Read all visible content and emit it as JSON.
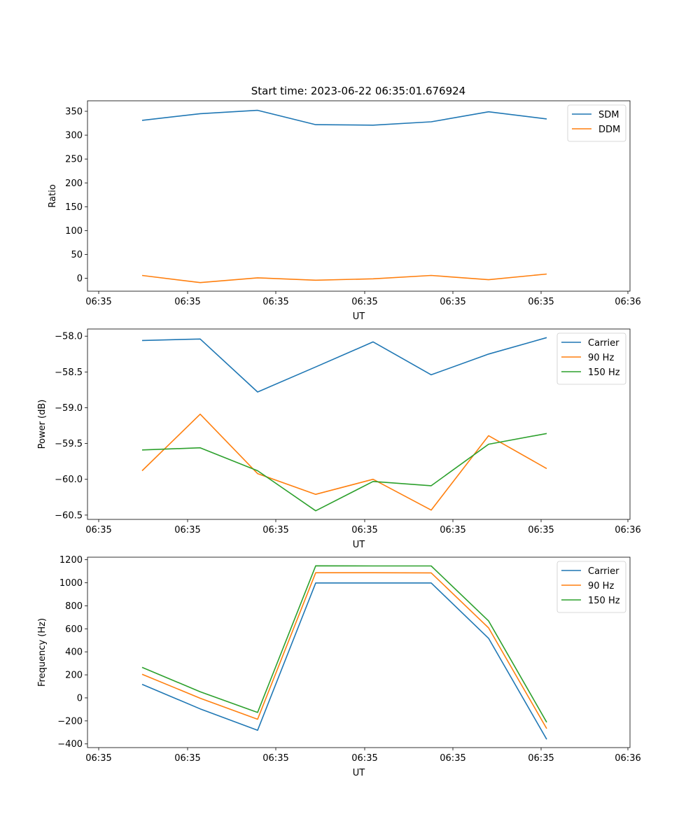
{
  "figure": {
    "title": "Start time: 2023-06-22 06:35:01.676924"
  },
  "chart_data": [
    {
      "type": "line",
      "xlabel": "UT",
      "ylabel": "Ratio",
      "x_tick_labels": [
        "06:35",
        "06:35",
        "06:35",
        "06:35",
        "06:35",
        "06:35",
        "06:36"
      ],
      "y_ticks": [
        0,
        50,
        100,
        150,
        200,
        250,
        300,
        350
      ],
      "ylim": [
        -27,
        372
      ],
      "legend_position": "top-right",
      "grid": false,
      "series": [
        {
          "name": "SDM",
          "color": "#1f77b4",
          "values": [
            331,
            345,
            352,
            322,
            321,
            328,
            349,
            334
          ]
        },
        {
          "name": "DDM",
          "color": "#ff7f0e",
          "values": [
            6,
            -9,
            1,
            -4,
            -1,
            6,
            -3,
            9
          ]
        }
      ]
    },
    {
      "type": "line",
      "xlabel": "UT",
      "ylabel": "Power (dB)",
      "x_tick_labels": [
        "06:35",
        "06:35",
        "06:35",
        "06:35",
        "06:35",
        "06:35",
        "06:36"
      ],
      "y_ticks": [
        -58.0,
        -58.5,
        -59.0,
        -59.5,
        -60.0,
        -60.5
      ],
      "y_tick_labels": [
        "−58.0",
        "−58.5",
        "−59.0",
        "−59.5",
        "−60.0",
        "−60.5"
      ],
      "ylim": [
        -60.56,
        -57.9
      ],
      "legend_position": "top-right",
      "grid": false,
      "series": [
        {
          "name": "Carrier",
          "color": "#1f77b4",
          "values": [
            -58.06,
            -58.04,
            -58.78,
            -58.43,
            -58.08,
            -58.54,
            -58.25,
            -58.02
          ]
        },
        {
          "name": "90 Hz",
          "color": "#ff7f0e",
          "values": [
            -59.88,
            -59.09,
            -59.92,
            -60.21,
            -60.0,
            -60.43,
            -59.39,
            -59.85
          ]
        },
        {
          "name": "150 Hz",
          "color": "#2ca02c",
          "values": [
            -59.59,
            -59.56,
            -59.88,
            -60.44,
            -60.03,
            -60.09,
            -59.51,
            -59.36
          ]
        }
      ]
    },
    {
      "type": "line",
      "xlabel": "UT",
      "ylabel": "Frequency (Hz)",
      "x_tick_labels": [
        "06:35",
        "06:35",
        "06:35",
        "06:35",
        "06:35",
        "06:35",
        "06:36"
      ],
      "y_ticks": [
        -400,
        -200,
        0,
        200,
        400,
        600,
        800,
        1000,
        1200
      ],
      "y_tick_labels": [
        "−400",
        "−200",
        "0",
        "200",
        "400",
        "600",
        "800",
        "1000",
        "1200"
      ],
      "ylim": [
        -432,
        1222
      ],
      "legend_position": "top-right",
      "grid": false,
      "series": [
        {
          "name": "Carrier",
          "color": "#1f77b4",
          "values": [
            118,
            -96,
            -282,
            998,
            998,
            998,
            517,
            -360
          ]
        },
        {
          "name": "90 Hz",
          "color": "#ff7f0e",
          "values": [
            205,
            -3,
            -186,
            1087,
            1087,
            1086,
            608,
            -267
          ]
        },
        {
          "name": "150 Hz",
          "color": "#2ca02c",
          "values": [
            265,
            53,
            -127,
            1147,
            1146,
            1146,
            668,
            -212
          ]
        }
      ]
    }
  ]
}
